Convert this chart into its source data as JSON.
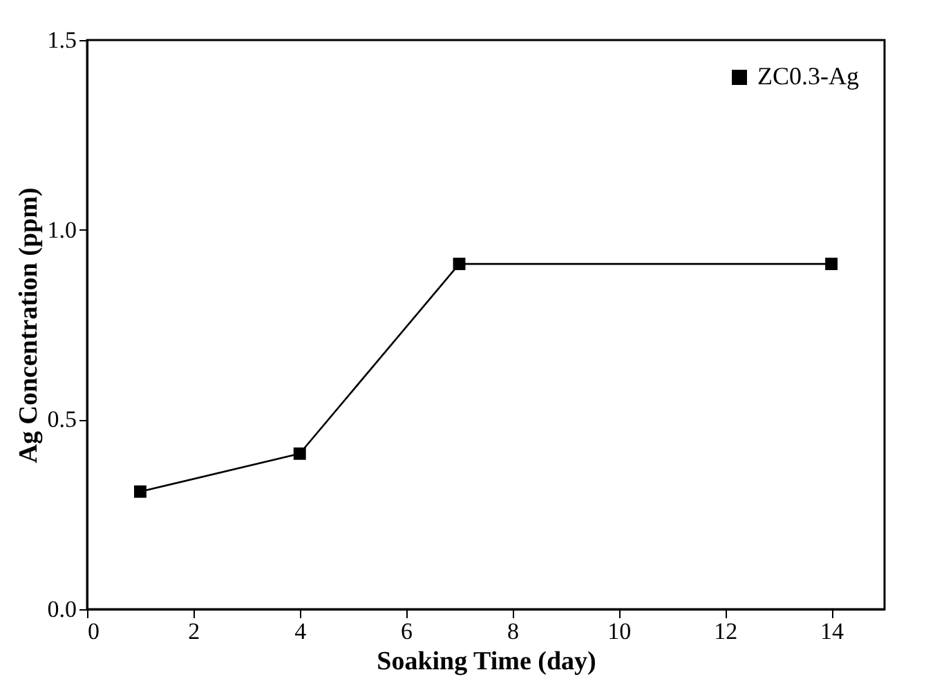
{
  "chart_data": {
    "type": "line",
    "xlabel": "Soaking Time (day)",
    "ylabel": "Ag Concentration (ppm)",
    "x": [
      1,
      4,
      7,
      14
    ],
    "series": [
      {
        "name": "ZC0.3-Ag",
        "color": "#000000",
        "values": [
          0.31,
          0.41,
          0.91,
          0.91
        ]
      }
    ],
    "xlim": [
      0,
      15
    ],
    "xticks": [
      0,
      2,
      4,
      6,
      8,
      10,
      12,
      14
    ],
    "ylim": [
      0,
      1.5
    ],
    "yticks": [
      {
        "value": 0,
        "label": "0.0"
      },
      {
        "value": 0.5,
        "label": "0.5"
      },
      {
        "value": 1,
        "label": "1.0"
      },
      {
        "value": 1.5,
        "label": "1.5"
      }
    ],
    "grid": false,
    "legend": "top right",
    "marker": "square",
    "line_style": "solid"
  }
}
